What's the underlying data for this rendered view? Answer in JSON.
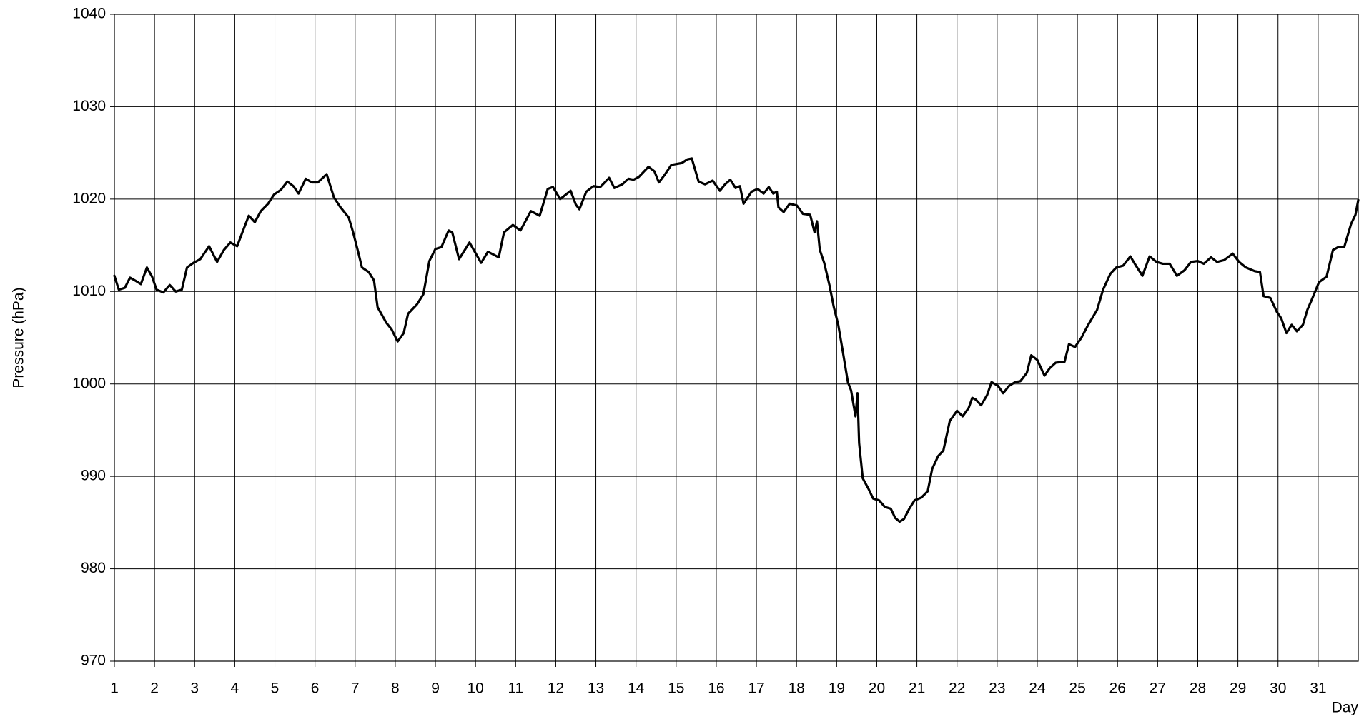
{
  "chart_data": {
    "type": "line",
    "x_label": "Day",
    "y_label": "Pressure (hPa)",
    "xlim": [
      1,
      32
    ],
    "ylim": [
      970,
      1040
    ],
    "xticks": [
      1,
      2,
      3,
      4,
      5,
      6,
      7,
      8,
      9,
      10,
      11,
      12,
      13,
      14,
      15,
      16,
      17,
      18,
      19,
      20,
      21,
      22,
      23,
      24,
      25,
      26,
      27,
      28,
      29,
      30,
      31
    ],
    "yticks": [
      970,
      980,
      990,
      1000,
      1010,
      1020,
      1030,
      1040
    ],
    "grid": true,
    "series": [
      {
        "color": "#000000",
        "x": [
          1.0,
          1.11,
          1.26,
          1.39,
          1.55,
          1.66,
          1.81,
          1.94,
          2.05,
          2.22,
          2.38,
          2.53,
          2.68,
          2.81,
          2.97,
          3.14,
          3.36,
          3.56,
          3.73,
          3.89,
          4.06,
          4.19,
          4.35,
          4.5,
          4.65,
          4.83,
          4.98,
          5.15,
          5.31,
          5.46,
          5.59,
          5.77,
          5.92,
          6.07,
          6.29,
          6.47,
          6.62,
          6.84,
          6.95,
          7.08,
          7.17,
          7.34,
          7.47,
          7.56,
          7.78,
          7.91,
          8.06,
          8.21,
          8.32,
          8.54,
          8.7,
          8.85,
          9.0,
          9.15,
          9.33,
          9.42,
          9.59,
          9.85,
          10.14,
          10.31,
          10.58,
          10.71,
          10.93,
          11.12,
          11.38,
          11.6,
          11.8,
          11.93,
          12.11,
          12.37,
          12.5,
          12.59,
          12.76,
          12.94,
          13.11,
          13.33,
          13.46,
          13.66,
          13.81,
          13.94,
          14.07,
          14.31,
          14.46,
          14.57,
          14.71,
          14.88,
          15.14,
          15.28,
          15.39,
          15.56,
          15.72,
          15.91,
          16.09,
          16.22,
          16.35,
          16.48,
          16.59,
          16.68,
          16.88,
          17.03,
          17.18,
          17.31,
          17.42,
          17.51,
          17.55,
          17.68,
          17.83,
          18.01,
          18.16,
          18.34,
          18.45,
          18.51,
          18.58,
          18.69,
          18.82,
          18.93,
          19.04,
          19.15,
          19.28,
          19.36,
          19.47,
          19.52,
          19.56,
          19.65,
          19.8,
          19.91,
          20.06,
          20.2,
          20.35,
          20.46,
          20.57,
          20.68,
          20.81,
          20.94,
          21.11,
          21.27,
          21.38,
          21.53,
          21.66,
          21.82,
          22.0,
          22.14,
          22.29,
          22.38,
          22.47,
          22.6,
          22.75,
          22.86,
          23.02,
          23.15,
          23.3,
          23.45,
          23.58,
          23.74,
          23.85,
          24.0,
          24.18,
          24.31,
          24.46,
          24.68,
          24.79,
          24.94,
          25.1,
          25.27,
          25.49,
          25.64,
          25.82,
          25.97,
          26.14,
          26.32,
          26.43,
          26.62,
          26.8,
          26.97,
          27.13,
          27.3,
          27.48,
          27.67,
          27.83,
          28.0,
          28.15,
          28.33,
          28.48,
          28.66,
          28.87,
          29.03,
          29.2,
          29.42,
          29.55,
          29.64,
          29.81,
          29.97,
          30.08,
          30.21,
          30.34,
          30.47,
          30.62,
          30.73,
          30.84,
          31.02,
          31.21,
          31.37,
          31.5,
          31.65,
          31.82,
          31.93,
          32.0
        ],
        "values": [
          1011.7,
          1010.2,
          1010.4,
          1011.5,
          1011.1,
          1010.8,
          1012.6,
          1011.6,
          1010.2,
          1009.9,
          1010.7,
          1010.0,
          1010.2,
          1012.6,
          1013.1,
          1013.5,
          1014.9,
          1013.2,
          1014.5,
          1015.3,
          1014.9,
          1016.4,
          1018.2,
          1017.5,
          1018.7,
          1019.5,
          1020.5,
          1021.0,
          1021.9,
          1021.4,
          1020.6,
          1022.2,
          1021.8,
          1021.8,
          1022.7,
          1020.2,
          1019.2,
          1018.0,
          1016.4,
          1014.2,
          1012.6,
          1012.1,
          1011.2,
          1008.3,
          1006.6,
          1005.9,
          1004.6,
          1005.5,
          1007.6,
          1008.6,
          1009.7,
          1013.3,
          1014.6,
          1014.8,
          1016.6,
          1016.4,
          1013.5,
          1015.3,
          1013.1,
          1014.3,
          1013.7,
          1016.4,
          1017.2,
          1016.6,
          1018.7,
          1018.2,
          1021.1,
          1021.3,
          1020.0,
          1020.9,
          1019.4,
          1018.9,
          1020.8,
          1021.4,
          1021.3,
          1022.3,
          1021.2,
          1021.6,
          1022.2,
          1022.1,
          1022.4,
          1023.5,
          1023.0,
          1021.8,
          1022.6,
          1023.7,
          1023.9,
          1024.3,
          1024.4,
          1021.9,
          1021.6,
          1022.0,
          1020.9,
          1021.6,
          1022.1,
          1021.2,
          1021.4,
          1019.5,
          1020.8,
          1021.1,
          1020.6,
          1021.3,
          1020.6,
          1020.8,
          1019.1,
          1018.6,
          1019.5,
          1019.3,
          1018.4,
          1018.3,
          1016.4,
          1017.6,
          1014.5,
          1013.1,
          1010.7,
          1008.3,
          1006.4,
          1003.6,
          1000.2,
          999.3,
          996.5,
          999.0,
          993.6,
          989.8,
          988.6,
          987.6,
          987.4,
          986.7,
          986.5,
          985.5,
          985.1,
          985.4,
          986.5,
          987.4,
          987.7,
          988.4,
          990.8,
          992.2,
          992.8,
          996.0,
          997.1,
          996.5,
          997.4,
          998.5,
          998.3,
          997.7,
          998.8,
          1000.2,
          999.8,
          999.0,
          999.8,
          1000.2,
          1000.3,
          1001.2,
          1003.1,
          1002.6,
          1000.9,
          1001.7,
          1002.3,
          1002.4,
          1004.3,
          1004.0,
          1005.0,
          1006.4,
          1008.0,
          1010.2,
          1011.9,
          1012.6,
          1012.8,
          1013.8,
          1013.0,
          1011.7,
          1013.8,
          1013.2,
          1013.0,
          1013.0,
          1011.7,
          1012.3,
          1013.2,
          1013.3,
          1013.0,
          1013.7,
          1013.2,
          1013.4,
          1014.1,
          1013.2,
          1012.6,
          1012.2,
          1012.1,
          1009.5,
          1009.3,
          1007.8,
          1007.1,
          1005.5,
          1006.4,
          1005.7,
          1006.4,
          1008.0,
          1009.1,
          1011.0,
          1011.6,
          1014.5,
          1014.8,
          1014.8,
          1017.3,
          1018.3,
          1019.9
        ]
      }
    ]
  }
}
